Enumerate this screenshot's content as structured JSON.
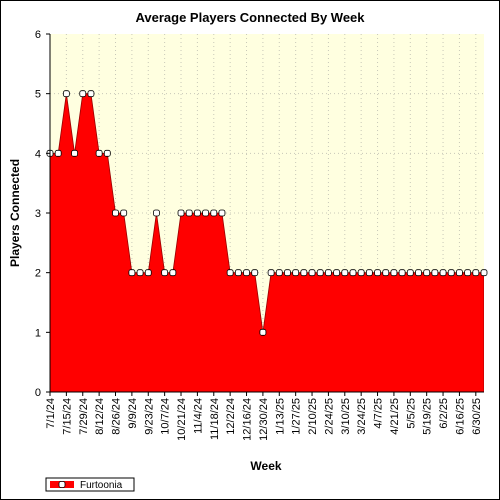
{
  "chart_data": {
    "type": "area",
    "title": "Average Players Connected By Week",
    "xlabel": "Week",
    "ylabel": "Players Connected",
    "ylim": [
      0,
      6
    ],
    "yticks": [
      "0",
      "1",
      "2",
      "3",
      "4",
      "5",
      "6"
    ],
    "grid": true,
    "legend": "bottom-left",
    "xtick_labels": [
      "7/1/24",
      "7/15/24",
      "7/29/24",
      "8/12/24",
      "8/26/24",
      "9/9/24",
      "9/23/24",
      "10/7/24",
      "10/21/24",
      "11/4/24",
      "11/18/24",
      "12/2/24",
      "12/16/24",
      "12/30/24",
      "1/13/25",
      "1/27/25",
      "2/10/25",
      "2/24/25",
      "3/10/25",
      "3/24/25",
      "4/7/25",
      "4/21/25",
      "5/5/25",
      "5/19/25",
      "6/2/25",
      "6/16/25",
      "6/30/25"
    ],
    "series": [
      {
        "name": "Furtoonia",
        "color": "#ff0000",
        "values": [
          4,
          4,
          5,
          4,
          5,
          5,
          4,
          4,
          3,
          3,
          2,
          2,
          2,
          3,
          2,
          2,
          3,
          3,
          3,
          3,
          3,
          3,
          2,
          2,
          2,
          2,
          1,
          2,
          2,
          2,
          2,
          2,
          2,
          2,
          2,
          2,
          2,
          2,
          2,
          2,
          2,
          2,
          2,
          2,
          2,
          2,
          2,
          2,
          2,
          2,
          2,
          2,
          2,
          2
        ]
      }
    ]
  }
}
